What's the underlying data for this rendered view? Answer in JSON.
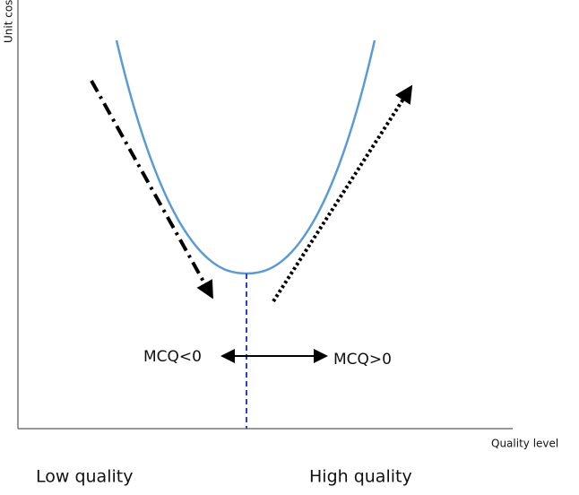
{
  "y_axis_label": "Unit cost",
  "x_axis_label": "Quality level",
  "left_arrow_label": "MCQ<0",
  "right_arrow_label": "MCQ>0",
  "left_caption": "Low quality",
  "right_caption": "High quality"
}
